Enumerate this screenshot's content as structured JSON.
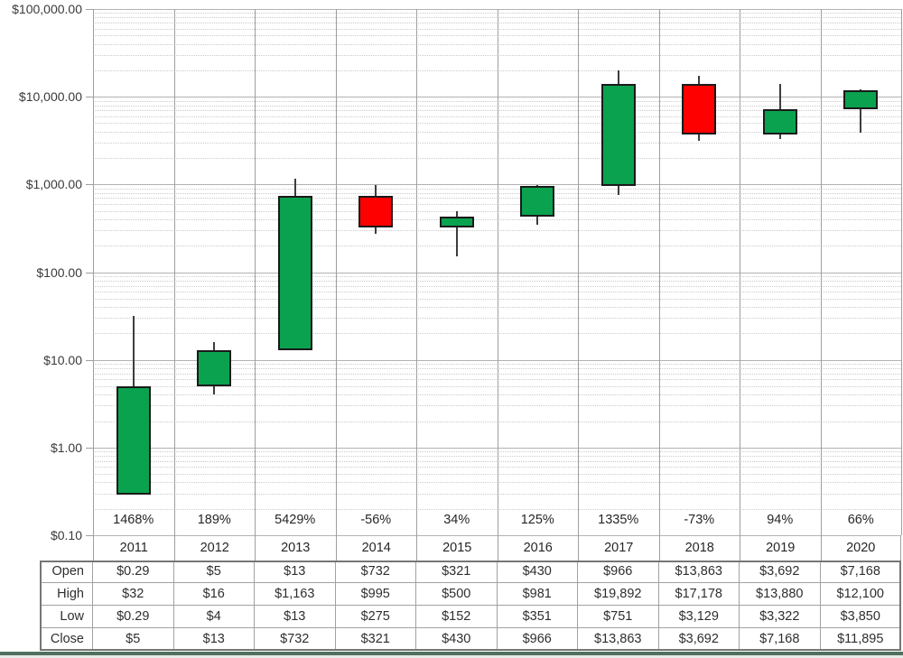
{
  "colors": {
    "up_candle": "#0aa24f",
    "down_candle": "#fe0000",
    "candle_border": "#1a1a1a",
    "wick": "#3d3d3d",
    "grid_major": "#b2b2b2",
    "grid_minor": "#cacaca",
    "grid_vertical": "#9f9f9f",
    "table_border_inner": "#a2a2a2",
    "table_border_outer": "#767676",
    "bottom_bar": "#52705f"
  },
  "chart_data": {
    "type": "candlestick",
    "title": "",
    "x_categories": [
      "2011",
      "2012",
      "2013",
      "2014",
      "2015",
      "2016",
      "2017",
      "2018",
      "2019",
      "2020"
    ],
    "series": [
      {
        "name": "Open",
        "values": [
          0.29,
          5,
          13,
          732,
          321,
          430,
          966,
          13863,
          3692,
          7168
        ]
      },
      {
        "name": "High",
        "values": [
          32,
          16,
          1163,
          995,
          500,
          981,
          19892,
          17178,
          13880,
          12100
        ]
      },
      {
        "name": "Low",
        "values": [
          0.29,
          4,
          13,
          275,
          152,
          351,
          751,
          3129,
          3322,
          3850
        ]
      },
      {
        "name": "Close",
        "values": [
          5,
          13,
          732,
          321,
          430,
          966,
          13863,
          3692,
          7168,
          11895
        ]
      }
    ],
    "pct_change_labels": [
      "1468%",
      "189%",
      "5429%",
      "-56%",
      "34%",
      "125%",
      "1335%",
      "-73%",
      "94%",
      "66%"
    ],
    "y_axis": {
      "scale": "log10",
      "min": 0.1,
      "max": 100000,
      "tick_labels": [
        "$100,000.00",
        "$10,000.00",
        "$1,000.00",
        "$100.00",
        "$10.00",
        "$1.00",
        "$0.10"
      ]
    },
    "grid": {
      "horizontal_major": "solid",
      "horizontal_minor": "dotted",
      "vertical": "solid"
    },
    "legend": "none"
  },
  "data_table": {
    "row_headers": [
      "Open",
      "High",
      "Low",
      "Close"
    ],
    "columns": [
      "2011",
      "2012",
      "2013",
      "2014",
      "2015",
      "2016",
      "2017",
      "2018",
      "2019",
      "2020"
    ],
    "cells": [
      [
        "$0.29",
        "$5",
        "$13",
        "$732",
        "$321",
        "$430",
        "$966",
        "$13,863",
        "$3,692",
        "$7,168"
      ],
      [
        "$32",
        "$16",
        "$1,163",
        "$995",
        "$500",
        "$981",
        "$19,892",
        "$17,178",
        "$13,880",
        "$12,100"
      ],
      [
        "$0.29",
        "$4",
        "$13",
        "$275",
        "$152",
        "$351",
        "$751",
        "$3,129",
        "$3,322",
        "$3,850"
      ],
      [
        "$5",
        "$13",
        "$732",
        "$321",
        "$430",
        "$966",
        "$13,863",
        "$3,692",
        "$7,168",
        "$11,895"
      ]
    ]
  }
}
